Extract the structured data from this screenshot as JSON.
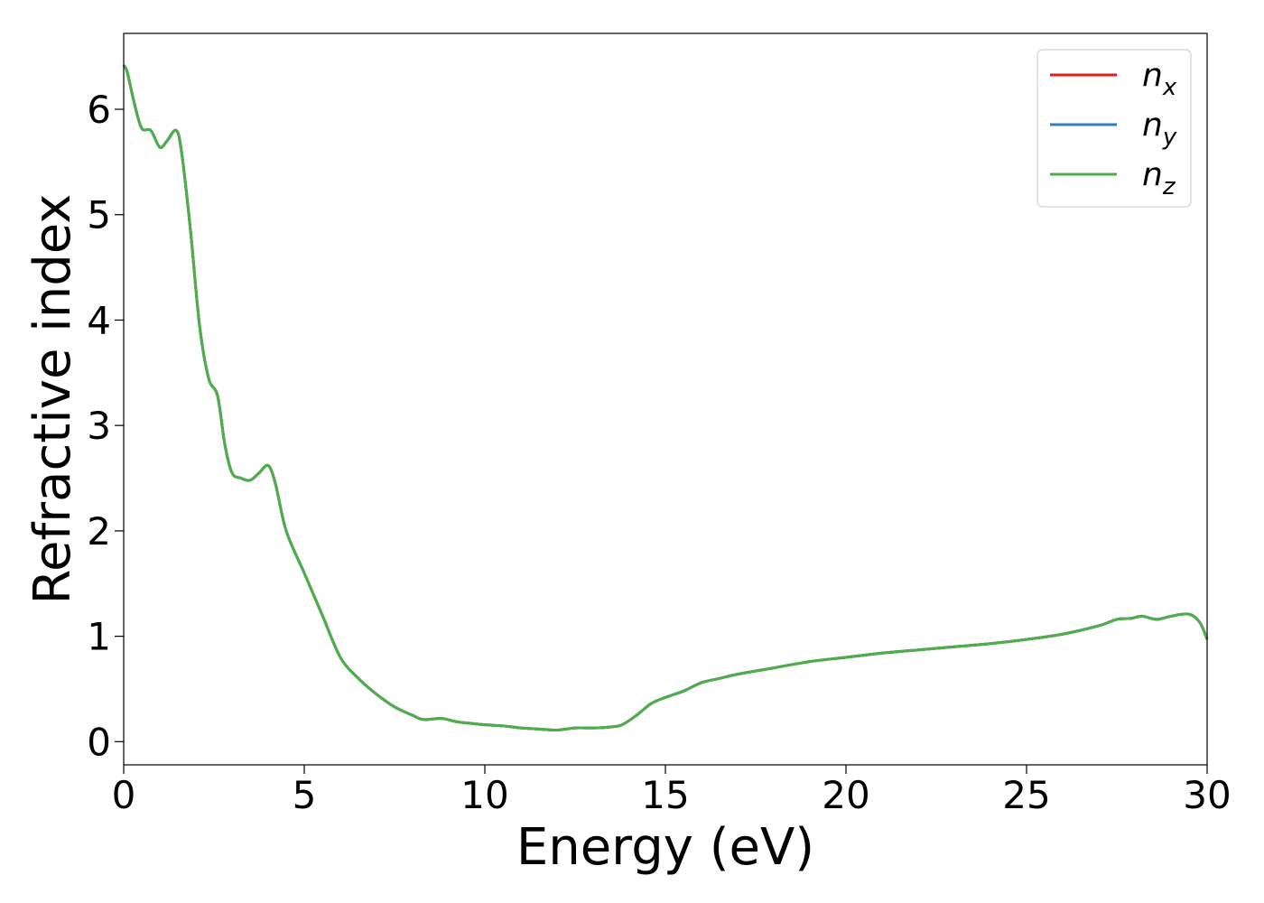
{
  "chart_data": {
    "type": "line",
    "title": "",
    "xlabel": "Energy (eV)",
    "ylabel": "Refractive index",
    "xlim": [
      0,
      30
    ],
    "ylim": [
      -0.22,
      6.72
    ],
    "xticks": [
      0,
      5,
      10,
      15,
      20,
      25,
      30
    ],
    "yticks": [
      0,
      1,
      2,
      3,
      4,
      5,
      6
    ],
    "grid": false,
    "legend_position": "top-right",
    "series": [
      {
        "name": "n",
        "subscript": "x",
        "color": "#e41a1c",
        "x": [
          0,
          0.1,
          0.3,
          0.5,
          0.75,
          1.0,
          1.2,
          1.45,
          1.6,
          1.85,
          2.1,
          2.35,
          2.6,
          2.8,
          3.0,
          3.25,
          3.5,
          3.75,
          4.0,
          4.2,
          4.5,
          5.0,
          5.5,
          6.0,
          6.5,
          7.0,
          7.5,
          8.0,
          8.3,
          8.8,
          9.2,
          9.7,
          10.0,
          10.5,
          11.0,
          11.5,
          12.0,
          12.5,
          13.0,
          13.5,
          13.8,
          14.2,
          14.6,
          15.0,
          15.5,
          16.0,
          16.5,
          17.0,
          18.0,
          19.0,
          20.0,
          21.0,
          22.0,
          23.0,
          24.0,
          25.0,
          26.0,
          27.0,
          27.5,
          27.9,
          28.2,
          28.6,
          29.0,
          29.5,
          29.8,
          30.0
        ],
        "y": [
          6.42,
          6.35,
          6.05,
          5.82,
          5.8,
          5.64,
          5.7,
          5.8,
          5.6,
          4.85,
          3.95,
          3.45,
          3.28,
          2.82,
          2.55,
          2.5,
          2.48,
          2.55,
          2.62,
          2.45,
          2.0,
          1.6,
          1.2,
          0.8,
          0.6,
          0.45,
          0.33,
          0.25,
          0.21,
          0.22,
          0.19,
          0.17,
          0.16,
          0.15,
          0.13,
          0.12,
          0.11,
          0.13,
          0.13,
          0.14,
          0.16,
          0.25,
          0.36,
          0.42,
          0.48,
          0.56,
          0.6,
          0.64,
          0.7,
          0.76,
          0.8,
          0.84,
          0.87,
          0.9,
          0.93,
          0.97,
          1.02,
          1.1,
          1.16,
          1.17,
          1.19,
          1.16,
          1.19,
          1.21,
          1.13,
          0.97
        ]
      },
      {
        "name": "n",
        "subscript": "y",
        "color": "#377eb8",
        "x": [
          0,
          0.1,
          0.3,
          0.5,
          0.75,
          1.0,
          1.2,
          1.45,
          1.6,
          1.85,
          2.1,
          2.35,
          2.6,
          2.8,
          3.0,
          3.25,
          3.5,
          3.75,
          4.0,
          4.2,
          4.5,
          5.0,
          5.5,
          6.0,
          6.5,
          7.0,
          7.5,
          8.0,
          8.3,
          8.8,
          9.2,
          9.7,
          10.0,
          10.5,
          11.0,
          11.5,
          12.0,
          12.5,
          13.0,
          13.5,
          13.8,
          14.2,
          14.6,
          15.0,
          15.5,
          16.0,
          16.5,
          17.0,
          18.0,
          19.0,
          20.0,
          21.0,
          22.0,
          23.0,
          24.0,
          25.0,
          26.0,
          27.0,
          27.5,
          27.9,
          28.2,
          28.6,
          29.0,
          29.5,
          29.8,
          30.0
        ],
        "y": [
          6.42,
          6.35,
          6.05,
          5.82,
          5.8,
          5.64,
          5.7,
          5.8,
          5.6,
          4.85,
          3.95,
          3.45,
          3.28,
          2.82,
          2.55,
          2.5,
          2.48,
          2.55,
          2.62,
          2.45,
          2.0,
          1.6,
          1.2,
          0.8,
          0.6,
          0.45,
          0.33,
          0.25,
          0.21,
          0.22,
          0.19,
          0.17,
          0.16,
          0.15,
          0.13,
          0.12,
          0.11,
          0.13,
          0.13,
          0.14,
          0.16,
          0.25,
          0.36,
          0.42,
          0.48,
          0.56,
          0.6,
          0.64,
          0.7,
          0.76,
          0.8,
          0.84,
          0.87,
          0.9,
          0.93,
          0.97,
          1.02,
          1.1,
          1.16,
          1.17,
          1.19,
          1.16,
          1.19,
          1.21,
          1.13,
          0.97
        ]
      },
      {
        "name": "n",
        "subscript": "z",
        "color": "#4daf4a",
        "x": [
          0,
          0.1,
          0.3,
          0.5,
          0.75,
          1.0,
          1.2,
          1.45,
          1.6,
          1.85,
          2.1,
          2.35,
          2.6,
          2.8,
          3.0,
          3.25,
          3.5,
          3.75,
          4.0,
          4.2,
          4.5,
          5.0,
          5.5,
          6.0,
          6.5,
          7.0,
          7.5,
          8.0,
          8.3,
          8.8,
          9.2,
          9.7,
          10.0,
          10.5,
          11.0,
          11.5,
          12.0,
          12.5,
          13.0,
          13.5,
          13.8,
          14.2,
          14.6,
          15.0,
          15.5,
          16.0,
          16.5,
          17.0,
          18.0,
          19.0,
          20.0,
          21.0,
          22.0,
          23.0,
          24.0,
          25.0,
          26.0,
          27.0,
          27.5,
          27.9,
          28.2,
          28.6,
          29.0,
          29.5,
          29.8,
          30.0
        ],
        "y": [
          6.42,
          6.35,
          6.05,
          5.82,
          5.8,
          5.64,
          5.7,
          5.8,
          5.6,
          4.85,
          3.95,
          3.45,
          3.28,
          2.82,
          2.55,
          2.5,
          2.48,
          2.55,
          2.62,
          2.45,
          2.0,
          1.6,
          1.2,
          0.8,
          0.6,
          0.45,
          0.33,
          0.25,
          0.21,
          0.22,
          0.19,
          0.17,
          0.16,
          0.15,
          0.13,
          0.12,
          0.11,
          0.13,
          0.13,
          0.14,
          0.16,
          0.25,
          0.36,
          0.42,
          0.48,
          0.56,
          0.6,
          0.64,
          0.7,
          0.76,
          0.8,
          0.84,
          0.87,
          0.9,
          0.93,
          0.97,
          1.02,
          1.1,
          1.16,
          1.17,
          1.19,
          1.16,
          1.19,
          1.21,
          1.13,
          0.97
        ]
      }
    ]
  }
}
